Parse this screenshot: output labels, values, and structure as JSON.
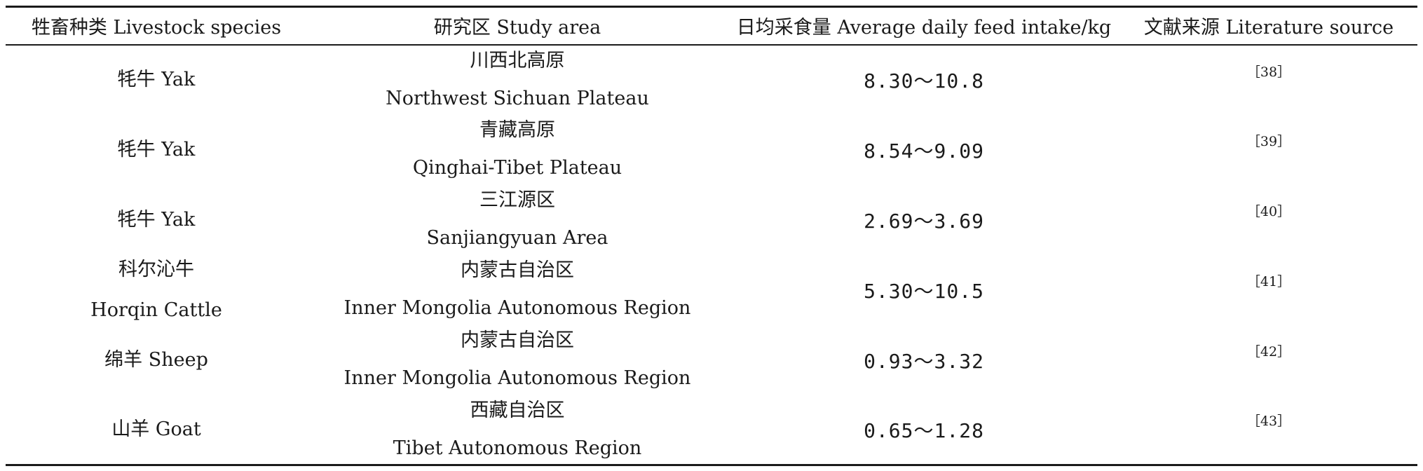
{
  "table": {
    "headers": [
      "牲畜种类 Livestock species",
      "研究区 Study area",
      "日均采食量 Average daily feed intake/kg",
      "文献来源 Literature source"
    ],
    "rows": [
      {
        "species_zh": "牦牛 Yak",
        "species_en": "",
        "area_zh": "川西北高原",
        "area_en": "Northwest Sichuan Plateau",
        "intake": "8.30～10.8",
        "ref": "［38］"
      },
      {
        "species_zh": "牦牛 Yak",
        "species_en": "",
        "area_zh": "青藏高原",
        "area_en": "Qinghai-Tibet Plateau",
        "intake": "8.54～9.09",
        "ref": "［39］"
      },
      {
        "species_zh": "牦牛 Yak",
        "species_en": "",
        "area_zh": "三江源区",
        "area_en": "Sanjiangyuan Area",
        "intake": "2.69～3.69",
        "ref": "［40］"
      },
      {
        "species_zh": "科尔沁牛",
        "species_en": "Horqin Cattle",
        "area_zh": "内蒙古自治区",
        "area_en": "Inner Mongolia Autonomous Region",
        "intake": "5.30～10.5",
        "ref": "［41］"
      },
      {
        "species_zh": "绵羊 Sheep",
        "species_en": "",
        "area_zh": "内蒙古自治区",
        "area_en": "Inner Mongolia Autonomous Region",
        "intake": "0.93～3.32",
        "ref": "［42］"
      },
      {
        "species_zh": "山羊 Goat",
        "species_en": "",
        "area_zh": "西藏自治区",
        "area_en": "Tibet Autonomous Region",
        "intake": "0.65～1.28",
        "ref": "［43］"
      }
    ]
  }
}
